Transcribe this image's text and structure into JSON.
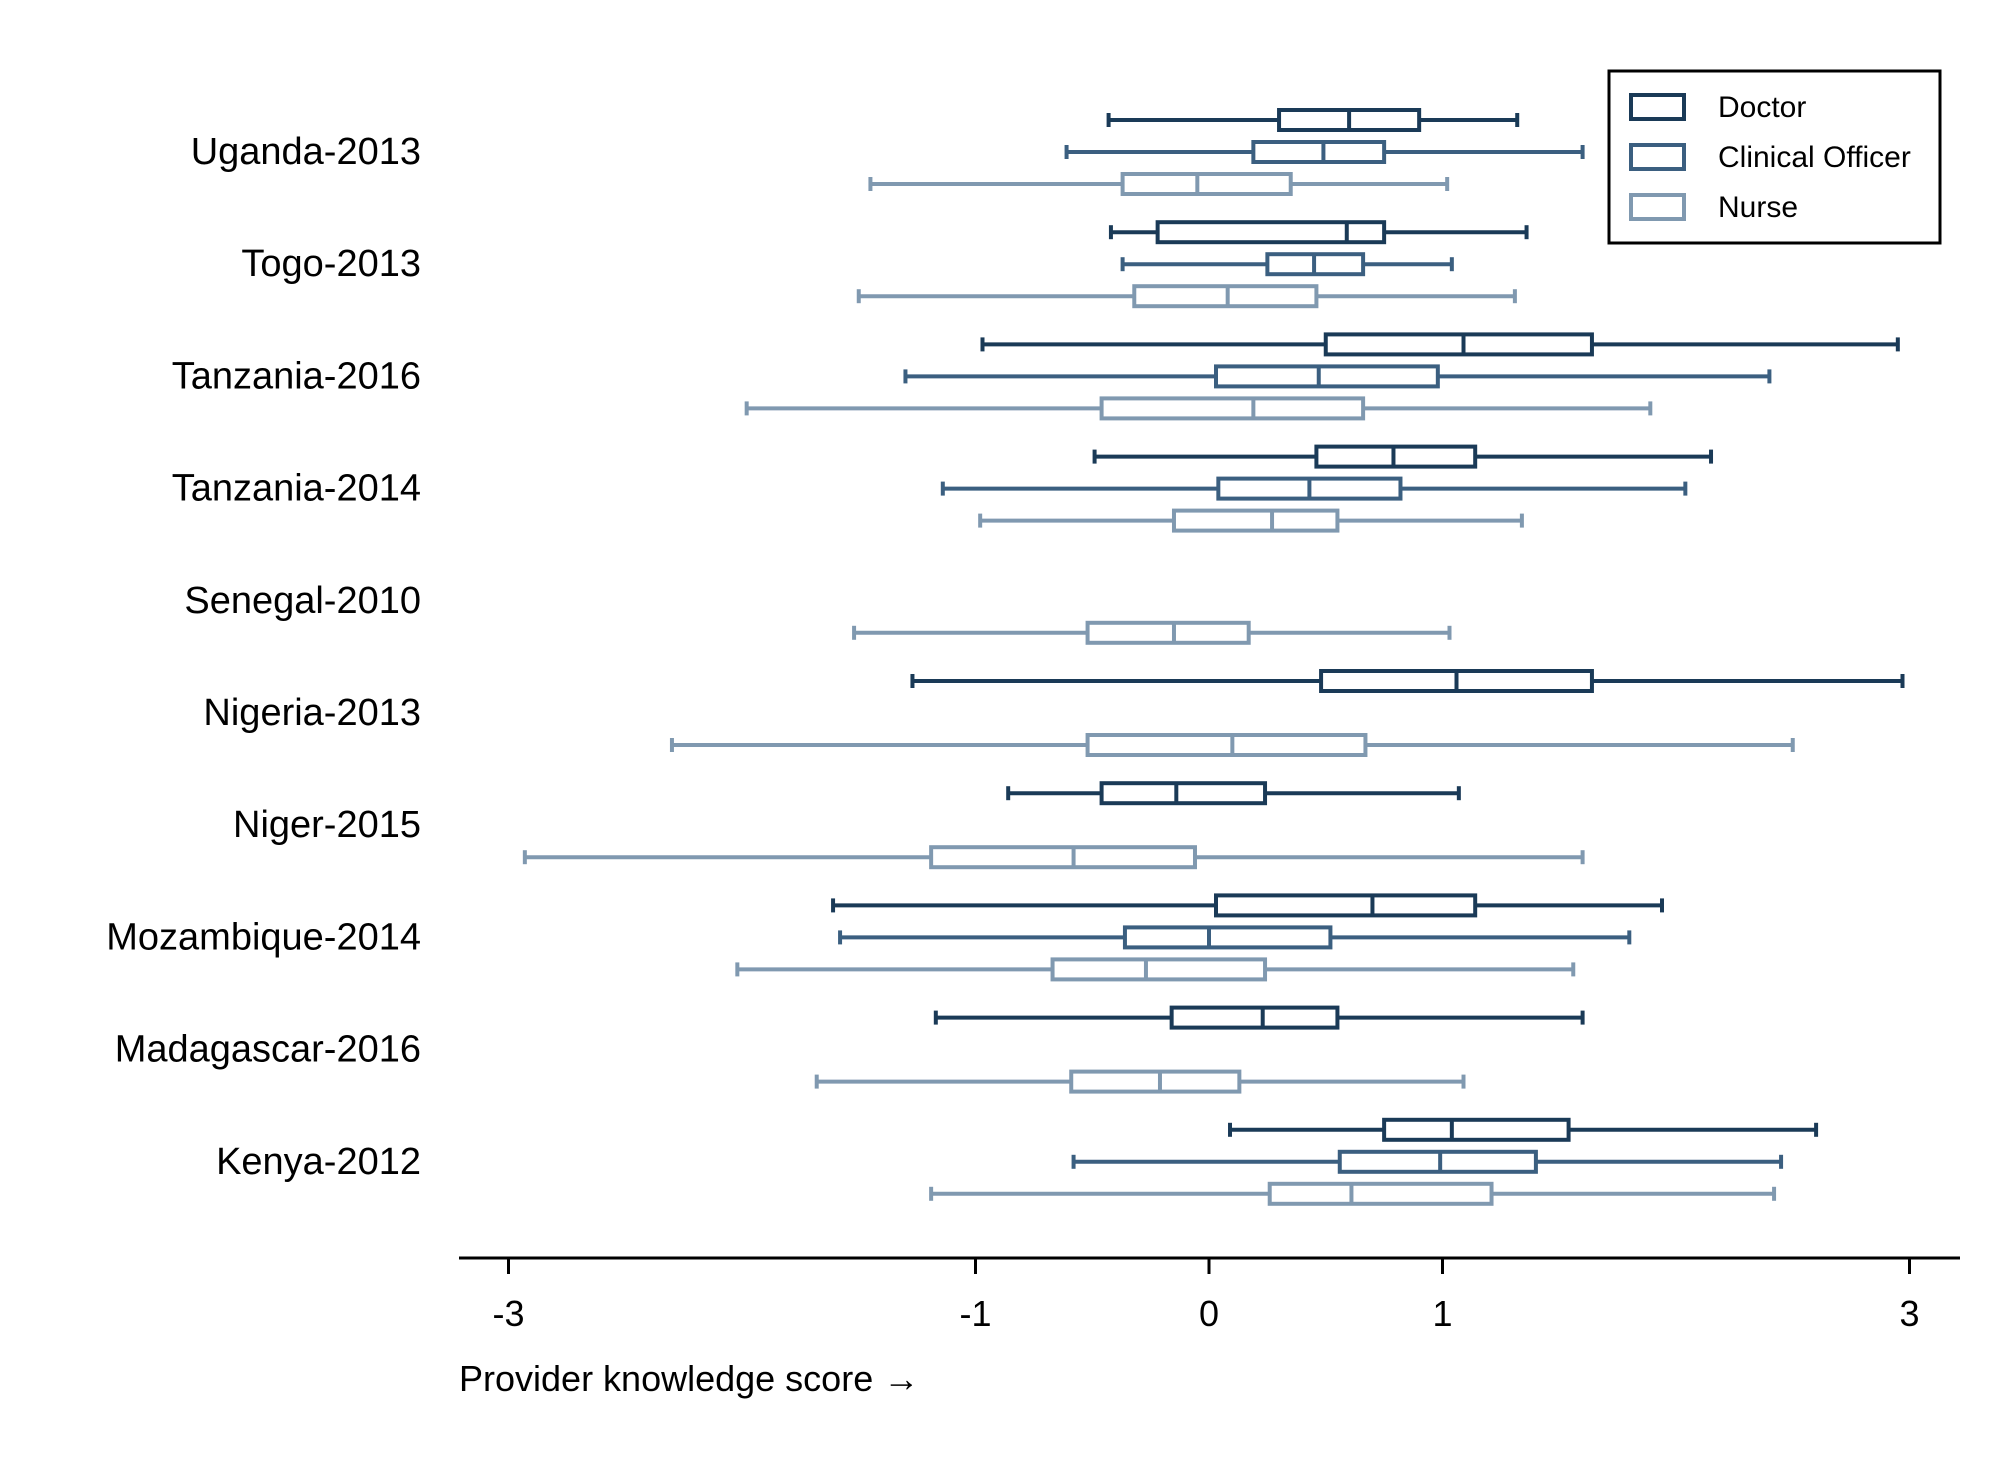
{
  "chart_data": {
    "type": "box",
    "orientation": "horizontal",
    "xlabel": "Provider knowledge score →",
    "xticks": [
      -3,
      -1,
      0,
      1,
      3
    ],
    "xlim": [
      -3.2,
      3.2
    ],
    "legend": {
      "placement": "top-right",
      "entries": [
        "Doctor",
        "Clinical Officer",
        "Nurse"
      ]
    },
    "colors": {
      "Doctor": "#1a3a57",
      "Clinical Officer": "#3b5f80",
      "Nurse": "#8099b0"
    },
    "groups": [
      {
        "label": "Uganda-2013",
        "boxes": [
          {
            "role": "Doctor",
            "min": -0.43,
            "q1": 0.3,
            "median": 0.6,
            "q3": 0.9,
            "max": 1.32
          },
          {
            "role": "Clinical Officer",
            "min": -0.61,
            "q1": 0.19,
            "median": 0.49,
            "q3": 0.75,
            "max": 1.6
          },
          {
            "role": "Nurse",
            "min": -1.45,
            "q1": -0.37,
            "median": -0.05,
            "q3": 0.35,
            "max": 1.02
          }
        ]
      },
      {
        "label": "Togo-2013",
        "boxes": [
          {
            "role": "Doctor",
            "min": -0.42,
            "q1": -0.22,
            "median": 0.59,
            "q3": 0.75,
            "max": 1.36
          },
          {
            "role": "Clinical Officer",
            "min": -0.37,
            "q1": 0.25,
            "median": 0.45,
            "q3": 0.66,
            "max": 1.04
          },
          {
            "role": "Nurse",
            "min": -1.5,
            "q1": -0.32,
            "median": 0.08,
            "q3": 0.46,
            "max": 1.31
          }
        ]
      },
      {
        "label": "Tanzania-2016",
        "boxes": [
          {
            "role": "Doctor",
            "min": -0.97,
            "q1": 0.5,
            "median": 1.09,
            "q3": 1.64,
            "max": 2.95
          },
          {
            "role": "Clinical Officer",
            "min": -1.3,
            "q1": 0.03,
            "median": 0.47,
            "q3": 0.98,
            "max": 2.4
          },
          {
            "role": "Nurse",
            "min": -1.98,
            "q1": -0.46,
            "median": 0.19,
            "q3": 0.66,
            "max": 1.89
          }
        ]
      },
      {
        "label": "Tanzania-2014",
        "boxes": [
          {
            "role": "Doctor",
            "min": -0.49,
            "q1": 0.46,
            "median": 0.79,
            "q3": 1.14,
            "max": 2.15
          },
          {
            "role": "Clinical Officer",
            "min": -1.14,
            "q1": 0.04,
            "median": 0.43,
            "q3": 0.82,
            "max": 2.04
          },
          {
            "role": "Nurse",
            "min": -0.98,
            "q1": -0.15,
            "median": 0.27,
            "q3": 0.55,
            "max": 1.34
          }
        ]
      },
      {
        "label": "Senegal-2010",
        "boxes": [
          {
            "role": "Nurse",
            "min": -1.52,
            "q1": -0.52,
            "median": -0.15,
            "q3": 0.17,
            "max": 1.03
          }
        ]
      },
      {
        "label": "Nigeria-2013",
        "boxes": [
          {
            "role": "Doctor",
            "min": -1.27,
            "q1": 0.48,
            "median": 1.06,
            "q3": 1.64,
            "max": 2.97
          },
          {
            "role": "Nurse",
            "min": -2.3,
            "q1": -0.52,
            "median": 0.1,
            "q3": 0.67,
            "max": 2.5
          }
        ]
      },
      {
        "label": "Niger-2015",
        "boxes": [
          {
            "role": "Doctor",
            "min": -0.86,
            "q1": -0.46,
            "median": -0.14,
            "q3": 0.24,
            "max": 1.07
          },
          {
            "role": "Nurse",
            "min": -2.93,
            "q1": -1.19,
            "median": -0.58,
            "q3": -0.06,
            "max": 1.6
          }
        ]
      },
      {
        "label": "Mozambique-2014",
        "boxes": [
          {
            "role": "Doctor",
            "min": -1.61,
            "q1": 0.03,
            "median": 0.7,
            "q3": 1.14,
            "max": 1.94
          },
          {
            "role": "Clinical Officer",
            "min": -1.58,
            "q1": -0.36,
            "median": 0.0,
            "q3": 0.52,
            "max": 1.8
          },
          {
            "role": "Nurse",
            "min": -2.02,
            "q1": -0.67,
            "median": -0.27,
            "q3": 0.24,
            "max": 1.56
          }
        ]
      },
      {
        "label": "Madagascar-2016",
        "boxes": [
          {
            "role": "Doctor",
            "min": -1.17,
            "q1": -0.16,
            "median": 0.23,
            "q3": 0.55,
            "max": 1.6
          },
          {
            "role": "Nurse",
            "min": -1.68,
            "q1": -0.59,
            "median": -0.21,
            "q3": 0.13,
            "max": 1.09
          }
        ]
      },
      {
        "label": "Kenya-2012",
        "boxes": [
          {
            "role": "Doctor",
            "min": 0.09,
            "q1": 0.75,
            "median": 1.04,
            "q3": 1.54,
            "max": 2.6
          },
          {
            "role": "Clinical Officer",
            "min": -0.58,
            "q1": 0.56,
            "median": 0.99,
            "q3": 1.4,
            "max": 2.45
          },
          {
            "role": "Nurse",
            "min": -1.19,
            "q1": 0.26,
            "median": 0.61,
            "q3": 1.21,
            "max": 2.42
          }
        ]
      }
    ]
  }
}
